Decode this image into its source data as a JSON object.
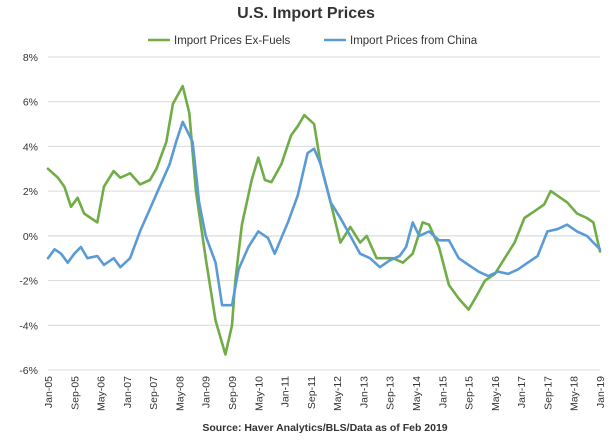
{
  "chart_data": {
    "type": "line",
    "title": "U.S. Import Prices",
    "source": "Source: Haver Analytics/BLS/Data as of Feb 2019",
    "ylim": [
      -6,
      8
    ],
    "y_ticks": [
      "8%",
      "6%",
      "4%",
      "2%",
      "0%",
      "-2%",
      "-4%",
      "-6%"
    ],
    "y_tick_values": [
      8,
      6,
      4,
      2,
      0,
      -2,
      -4,
      -6
    ],
    "x_range": [
      "2005-01",
      "2019-01"
    ],
    "x_ticks": [
      "Jan-05",
      "Sep-05",
      "May-06",
      "Jan-07",
      "Sep-07",
      "May-08",
      "Jan-09",
      "Sep-09",
      "May-10",
      "Jan-11",
      "Sep-11",
      "May-12",
      "Jan-13",
      "Sep-13",
      "May-14",
      "Jan-15",
      "Sep-15",
      "May-16",
      "Jan-17",
      "Sep-17",
      "May-18",
      "Jan-19"
    ],
    "grid": true,
    "legend_position": "top",
    "series": [
      {
        "name": "Import Prices Ex-Fuels",
        "color": "#70ad47",
        "points": [
          [
            "2005-01",
            3.0
          ],
          [
            "2005-04",
            2.6
          ],
          [
            "2005-06",
            2.2
          ],
          [
            "2005-08",
            1.3
          ],
          [
            "2005-10",
            1.7
          ],
          [
            "2005-12",
            1.0
          ],
          [
            "2006-04",
            0.6
          ],
          [
            "2006-06",
            2.2
          ],
          [
            "2006-09",
            2.9
          ],
          [
            "2006-11",
            2.6
          ],
          [
            "2007-02",
            2.8
          ],
          [
            "2007-05",
            2.3
          ],
          [
            "2007-08",
            2.5
          ],
          [
            "2007-10",
            3.0
          ],
          [
            "2008-01",
            4.2
          ],
          [
            "2008-03",
            5.9
          ],
          [
            "2008-06",
            6.7
          ],
          [
            "2008-08",
            5.5
          ],
          [
            "2008-10",
            2.0
          ],
          [
            "2009-01",
            -1.0
          ],
          [
            "2009-04",
            -3.8
          ],
          [
            "2009-07",
            -5.3
          ],
          [
            "2009-09",
            -4.0
          ],
          [
            "2009-10",
            -2.0
          ],
          [
            "2009-12",
            0.5
          ],
          [
            "2010-03",
            2.5
          ],
          [
            "2010-05",
            3.5
          ],
          [
            "2010-07",
            2.5
          ],
          [
            "2010-09",
            2.4
          ],
          [
            "2010-12",
            3.2
          ],
          [
            "2011-03",
            4.5
          ],
          [
            "2011-05",
            4.9
          ],
          [
            "2011-07",
            5.4
          ],
          [
            "2011-10",
            5.0
          ],
          [
            "2011-12",
            3.2
          ],
          [
            "2012-03",
            1.5
          ],
          [
            "2012-06",
            -0.3
          ],
          [
            "2012-09",
            0.4
          ],
          [
            "2012-12",
            -0.3
          ],
          [
            "2013-02",
            0.0
          ],
          [
            "2013-05",
            -1.0
          ],
          [
            "2013-10",
            -1.0
          ],
          [
            "2014-01",
            -1.2
          ],
          [
            "2014-04",
            -0.8
          ],
          [
            "2014-07",
            0.6
          ],
          [
            "2014-09",
            0.5
          ],
          [
            "2014-12",
            -0.5
          ],
          [
            "2015-03",
            -2.2
          ],
          [
            "2015-06",
            -2.8
          ],
          [
            "2015-09",
            -3.3
          ],
          [
            "2015-11",
            -2.8
          ],
          [
            "2016-02",
            -2.0
          ],
          [
            "2016-05",
            -1.7
          ],
          [
            "2016-08",
            -1.0
          ],
          [
            "2016-11",
            -0.3
          ],
          [
            "2017-02",
            0.8
          ],
          [
            "2017-05",
            1.1
          ],
          [
            "2017-08",
            1.4
          ],
          [
            "2017-10",
            2.0
          ],
          [
            "2017-12",
            1.8
          ],
          [
            "2018-03",
            1.5
          ],
          [
            "2018-06",
            1.0
          ],
          [
            "2018-09",
            0.8
          ],
          [
            "2018-11",
            0.6
          ],
          [
            "2019-01",
            -0.7
          ]
        ]
      },
      {
        "name": "Import Prices from China",
        "color": "#5b9bd5",
        "points": [
          [
            "2005-01",
            -1.0
          ],
          [
            "2005-03",
            -0.6
          ],
          [
            "2005-05",
            -0.8
          ],
          [
            "2005-07",
            -1.2
          ],
          [
            "2005-09",
            -0.8
          ],
          [
            "2005-11",
            -0.5
          ],
          [
            "2006-01",
            -1.0
          ],
          [
            "2006-04",
            -0.9
          ],
          [
            "2006-06",
            -1.3
          ],
          [
            "2006-09",
            -1.0
          ],
          [
            "2006-11",
            -1.4
          ],
          [
            "2007-02",
            -1.0
          ],
          [
            "2007-05",
            0.2
          ],
          [
            "2007-08",
            1.2
          ],
          [
            "2007-11",
            2.2
          ],
          [
            "2008-02",
            3.2
          ],
          [
            "2008-04",
            4.2
          ],
          [
            "2008-06",
            5.1
          ],
          [
            "2008-09",
            4.2
          ],
          [
            "2008-11",
            1.5
          ],
          [
            "2009-01",
            0.0
          ],
          [
            "2009-04",
            -1.2
          ],
          [
            "2009-06",
            -3.1
          ],
          [
            "2009-09",
            -3.1
          ],
          [
            "2009-11",
            -1.5
          ],
          [
            "2010-02",
            -0.5
          ],
          [
            "2010-05",
            0.2
          ],
          [
            "2010-08",
            -0.1
          ],
          [
            "2010-10",
            -0.8
          ],
          [
            "2011-02",
            0.6
          ],
          [
            "2011-05",
            1.8
          ],
          [
            "2011-08",
            3.7
          ],
          [
            "2011-10",
            3.9
          ],
          [
            "2011-12",
            3.2
          ],
          [
            "2012-03",
            1.5
          ],
          [
            "2012-06",
            0.8
          ],
          [
            "2012-09",
            0.0
          ],
          [
            "2012-12",
            -0.8
          ],
          [
            "2013-03",
            -1.0
          ],
          [
            "2013-06",
            -1.4
          ],
          [
            "2013-09",
            -1.1
          ],
          [
            "2013-12",
            -0.9
          ],
          [
            "2014-02",
            -0.5
          ],
          [
            "2014-04",
            0.6
          ],
          [
            "2014-06",
            0.0
          ],
          [
            "2014-09",
            0.2
          ],
          [
            "2014-12",
            -0.2
          ],
          [
            "2015-03",
            -0.2
          ],
          [
            "2015-06",
            -1.0
          ],
          [
            "2015-09",
            -1.3
          ],
          [
            "2015-12",
            -1.6
          ],
          [
            "2016-03",
            -1.8
          ],
          [
            "2016-06",
            -1.6
          ],
          [
            "2016-09",
            -1.7
          ],
          [
            "2016-12",
            -1.5
          ],
          [
            "2017-03",
            -1.2
          ],
          [
            "2017-06",
            -0.9
          ],
          [
            "2017-09",
            0.2
          ],
          [
            "2017-12",
            0.3
          ],
          [
            "2018-03",
            0.5
          ],
          [
            "2018-06",
            0.2
          ],
          [
            "2018-09",
            0.0
          ],
          [
            "2018-11",
            -0.3
          ],
          [
            "2019-01",
            -0.6
          ]
        ]
      }
    ]
  }
}
